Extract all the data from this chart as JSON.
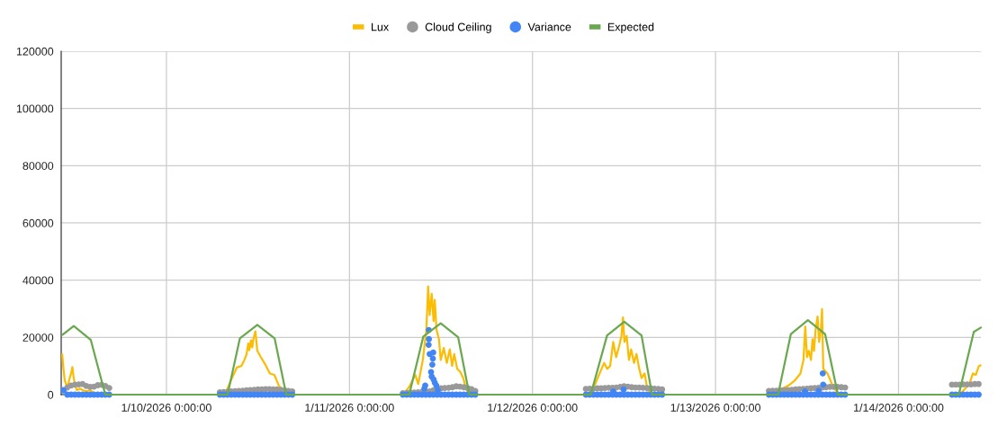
{
  "chart_data": {
    "type": "line",
    "legend": "top",
    "grid": true,
    "xlim": [
      "2026-01-09T10:12",
      "2026-01-14T10:48"
    ],
    "xticks": [
      {
        "value": "2026-01-10T00:00",
        "label": "1/10/2026 0:00:00"
      },
      {
        "value": "2026-01-11T00:00",
        "label": "1/11/2026 0:00:00"
      },
      {
        "value": "2026-01-12T00:00",
        "label": "1/12/2026 0:00:00"
      },
      {
        "value": "2026-01-13T00:00",
        "label": "1/13/2026 0:00:00"
      },
      {
        "value": "2026-01-14T00:00",
        "label": "1/14/2026 0:00:00"
      }
    ],
    "ylim": [
      0,
      120000
    ],
    "yticks": [
      0,
      20000,
      40000,
      60000,
      80000,
      100000,
      120000
    ],
    "series": [
      {
        "name": "Lux",
        "color": "#fbbc04",
        "x": [
          "2026-01-09T10:20",
          "2026-01-09T10:30",
          "2026-01-09T10:40",
          "2026-01-09T10:50",
          "2026-01-09T11:00",
          "2026-01-09T11:20",
          "2026-01-09T11:30",
          "2026-01-09T11:40",
          "2026-01-09T11:50",
          "2026-01-09T12:00",
          "2026-01-09T12:15",
          "2026-01-09T12:40",
          "2026-01-09T13:00",
          "2026-01-09T13:30",
          "2026-01-09T14:00",
          "2026-01-09T14:30",
          "2026-01-09T14:45",
          "2026-01-10T00:00",
          "2026-01-10T07:40",
          "2026-01-10T08:27",
          "2026-01-10T09:14",
          "2026-01-10T09:49",
          "2026-01-10T10:13",
          "2026-01-10T10:30",
          "2026-01-10T10:44",
          "2026-01-10T10:52",
          "2026-01-10T11:05",
          "2026-01-10T11:15",
          "2026-01-10T11:24",
          "2026-01-10T11:40",
          "2026-01-10T11:55",
          "2026-01-10T12:23",
          "2026-01-10T12:58",
          "2026-01-10T13:34",
          "2026-01-10T14:09",
          "2026-01-10T14:44",
          "2026-01-10T15:20",
          "2026-01-10T15:55",
          "2026-01-11T00:00",
          "2026-01-11T07:03",
          "2026-01-11T07:50",
          "2026-01-11T08:38",
          "2026-01-11T09:01",
          "2026-01-11T09:37",
          "2026-01-11T10:05",
          "2026-01-11T10:19",
          "2026-01-11T10:31",
          "2026-01-11T10:47",
          "2026-01-11T11:02",
          "2026-01-11T11:11",
          "2026-01-11T11:25",
          "2026-01-11T11:44",
          "2026-01-11T11:58",
          "2026-01-11T12:22",
          "2026-01-11T12:46",
          "2026-01-11T13:09",
          "2026-01-11T13:28",
          "2026-01-11T13:44",
          "2026-01-11T14:08",
          "2026-01-11T14:32",
          "2026-01-11T14:55",
          "2026-01-11T15:18",
          "2026-01-11T15:42",
          "2026-01-12T00:00",
          "2026-01-12T07:38",
          "2026-01-12T08:13",
          "2026-01-12T08:48",
          "2026-01-12T09:24",
          "2026-01-12T09:47",
          "2026-01-12T10:11",
          "2026-01-12T10:35",
          "2026-01-12T10:58",
          "2026-01-12T11:21",
          "2026-01-12T11:40",
          "2026-01-12T11:52",
          "2026-01-12T12:04",
          "2026-01-12T12:21",
          "2026-01-12T12:39",
          "2026-01-12T12:56",
          "2026-01-12T13:19",
          "2026-01-12T13:38",
          "2026-01-12T14:00",
          "2026-01-12T14:18",
          "2026-01-12T14:42",
          "2026-01-12T15:01",
          "2026-01-12T15:29",
          "2026-01-13T00:00",
          "2026-01-13T08:00",
          "2026-01-13T08:47",
          "2026-01-13T09:34",
          "2026-01-13T10:21",
          "2026-01-13T11:08",
          "2026-01-13T11:32",
          "2026-01-13T11:46",
          "2026-01-13T12:00",
          "2026-01-13T12:14",
          "2026-01-13T12:31",
          "2026-01-13T12:43",
          "2026-01-13T12:55",
          "2026-01-13T13:07",
          "2026-01-13T13:23",
          "2026-01-13T13:35",
          "2026-01-13T13:49",
          "2026-01-13T13:58",
          "2026-01-13T14:08",
          "2026-01-13T14:41",
          "2026-01-13T15:16",
          "2026-01-13T15:52",
          "2026-01-13T16:15",
          "2026-01-14T00:00",
          "2026-01-14T07:59",
          "2026-01-14T08:45",
          "2026-01-14T09:21",
          "2026-01-14T09:45",
          "2026-01-14T10:08",
          "2026-01-14T10:32",
          "2026-01-14T10:44"
        ],
        "values": [
          14000,
          9000,
          5000,
          3700,
          2500,
          6000,
          7400,
          9600,
          6000,
          3500,
          1600,
          2100,
          1600,
          1100,
          1600,
          500,
          0,
          null,
          0,
          4900,
          9500,
          10000,
          12100,
          14000,
          17900,
          15500,
          19000,
          16500,
          19400,
          22100,
          15300,
          13100,
          10500,
          7400,
          6900,
          3200,
          1100,
          0,
          null,
          0,
          2700,
          6900,
          3700,
          12100,
          22600,
          37800,
          27800,
          35200,
          25700,
          33100,
          22600,
          19400,
          12100,
          16300,
          11100,
          15800,
          10000,
          14200,
          9000,
          7900,
          5800,
          2100,
          0,
          null,
          0,
          3700,
          7400,
          11100,
          9000,
          10000,
          18400,
          13100,
          16800,
          20500,
          27000,
          18400,
          20500,
          12100,
          15800,
          11100,
          14200,
          9000,
          5800,
          7400,
          2700,
          0,
          null,
          0,
          2100,
          3200,
          4800,
          7400,
          12100,
          23800,
          13100,
          15300,
          12100,
          19400,
          15300,
          22600,
          27300,
          18400,
          22600,
          29900,
          9000,
          7400,
          3700,
          1100,
          0,
          null,
          0,
          2100,
          4200,
          7400,
          6900,
          10000,
          10200
        ]
      },
      {
        "name": "Cloud Ceiling",
        "type": "scatter",
        "marker": "circle",
        "color": "#999999",
        "x": [
          "2026-01-09T10:30",
          "2026-01-09T11:00",
          "2026-01-09T11:30",
          "2026-01-09T12:00",
          "2026-01-09T12:30",
          "2026-01-09T13:00",
          "2026-01-09T13:30",
          "2026-01-09T14:00",
          "2026-01-09T14:30",
          "2026-01-09T15:00",
          "2026-01-09T15:30",
          "2026-01-09T16:00",
          "2026-01-09T16:30",
          "2026-01-10T07:00",
          "2026-01-10T07:30",
          "2026-01-10T08:00",
          "2026-01-10T08:30",
          "2026-01-10T09:00",
          "2026-01-10T09:30",
          "2026-01-10T10:00",
          "2026-01-10T10:30",
          "2026-01-10T11:00",
          "2026-01-10T11:30",
          "2026-01-10T12:00",
          "2026-01-10T12:30",
          "2026-01-10T13:00",
          "2026-01-10T13:30",
          "2026-01-10T14:00",
          "2026-01-10T14:30",
          "2026-01-10T15:00",
          "2026-01-10T15:30",
          "2026-01-10T16:00",
          "2026-01-10T16:30",
          "2026-01-11T07:00",
          "2026-01-11T07:30",
          "2026-01-11T08:00",
          "2026-01-11T08:30",
          "2026-01-11T09:00",
          "2026-01-11T09:30",
          "2026-01-11T10:00",
          "2026-01-11T10:30",
          "2026-01-11T11:00",
          "2026-01-11T12:00",
          "2026-01-11T12:30",
          "2026-01-11T13:00",
          "2026-01-11T13:30",
          "2026-01-11T14:00",
          "2026-01-11T14:30",
          "2026-01-11T15:00",
          "2026-01-11T15:30",
          "2026-01-11T16:00",
          "2026-01-11T16:30",
          "2026-01-12T07:00",
          "2026-01-12T07:30",
          "2026-01-12T08:00",
          "2026-01-12T08:30",
          "2026-01-12T09:00",
          "2026-01-12T09:30",
          "2026-01-12T10:00",
          "2026-01-12T10:30",
          "2026-01-12T11:00",
          "2026-01-12T11:30",
          "2026-01-12T12:00",
          "2026-01-12T12:30",
          "2026-01-12T13:00",
          "2026-01-12T13:30",
          "2026-01-12T14:00",
          "2026-01-12T14:30",
          "2026-01-12T15:00",
          "2026-01-12T15:30",
          "2026-01-12T16:00",
          "2026-01-12T16:30",
          "2026-01-12T17:00",
          "2026-01-13T07:00",
          "2026-01-13T07:30",
          "2026-01-13T08:00",
          "2026-01-13T08:30",
          "2026-01-13T09:00",
          "2026-01-13T09:30",
          "2026-01-13T10:00",
          "2026-01-13T10:30",
          "2026-01-13T11:00",
          "2026-01-13T11:30",
          "2026-01-13T12:00",
          "2026-01-13T12:30",
          "2026-01-13T13:00",
          "2026-01-13T13:30",
          "2026-01-13T14:00",
          "2026-01-13T14:30",
          "2026-01-13T15:00",
          "2026-01-13T15:30",
          "2026-01-13T16:00",
          "2026-01-13T16:30",
          "2026-01-13T17:00",
          "2026-01-14T07:00",
          "2026-01-14T07:30",
          "2026-01-14T08:00",
          "2026-01-14T08:30",
          "2026-01-14T09:00",
          "2026-01-14T09:30",
          "2026-01-14T10:00",
          "2026-01-14T10:30"
        ],
        "values": [
          1600,
          2500,
          3200,
          3500,
          3600,
          3700,
          3000,
          2700,
          2800,
          3300,
          3400,
          3000,
          2300,
          800,
          900,
          1000,
          1100,
          1200,
          1300,
          1400,
          1500,
          1600,
          1700,
          1800,
          1800,
          1900,
          1900,
          1800,
          1800,
          1700,
          1500,
          1300,
          1100,
          500,
          600,
          700,
          700,
          800,
          900,
          1000,
          1100,
          1500,
          2200,
          2300,
          2400,
          2600,
          2900,
          2800,
          2600,
          2300,
          1900,
          1300,
          2000,
          2100,
          2100,
          2200,
          2200,
          2300,
          2400,
          2400,
          2500,
          2700,
          2900,
          2800,
          2600,
          2500,
          2500,
          2400,
          2300,
          2200,
          2100,
          2000,
          1800,
          1300,
          1400,
          1400,
          1500,
          1500,
          1600,
          1700,
          1800,
          1900,
          2000,
          2100,
          2200,
          2300,
          2400,
          2500,
          2600,
          2700,
          2700,
          2700,
          2600,
          2500,
          3500,
          3500,
          3500,
          3600,
          3600,
          3600,
          3700,
          3700
        ]
      },
      {
        "name": "Variance",
        "type": "scatter",
        "marker": "circle",
        "color": "#4285f4",
        "x": [
          "2026-01-09T10:30",
          "2026-01-09T11:00",
          "2026-01-09T11:30",
          "2026-01-09T12:00",
          "2026-01-09T12:30",
          "2026-01-09T13:00",
          "2026-01-09T13:30",
          "2026-01-09T14:00",
          "2026-01-09T14:30",
          "2026-01-09T15:00",
          "2026-01-09T15:30",
          "2026-01-09T16:00",
          "2026-01-09T16:30",
          "2026-01-10T07:00",
          "2026-01-10T07:30",
          "2026-01-10T08:00",
          "2026-01-10T08:30",
          "2026-01-10T09:00",
          "2026-01-10T09:30",
          "2026-01-10T10:00",
          "2026-01-10T10:30",
          "2026-01-10T11:00",
          "2026-01-10T11:30",
          "2026-01-10T12:00",
          "2026-01-10T12:30",
          "2026-01-10T13:00",
          "2026-01-10T13:30",
          "2026-01-10T14:00",
          "2026-01-10T14:30",
          "2026-01-10T15:00",
          "2026-01-10T15:30",
          "2026-01-10T16:00",
          "2026-01-10T16:30",
          "2026-01-11T07:00",
          "2026-01-11T07:30",
          "2026-01-11T08:00",
          "2026-01-11T08:30",
          "2026-01-11T09:00",
          "2026-01-11T09:30",
          "2026-01-11T09:49",
          "2026-01-11T09:56",
          "2026-01-11T10:00",
          "2026-01-11T10:23",
          "2026-01-11T10:24",
          "2026-01-11T10:25",
          "2026-01-11T10:30",
          "2026-01-11T10:31",
          "2026-01-11T10:42",
          "2026-01-11T10:47",
          "2026-01-11T10:52",
          "2026-01-11T10:56",
          "2026-01-11T10:59",
          "2026-01-11T11:00",
          "2026-01-11T11:02",
          "2026-01-11T11:11",
          "2026-01-11T11:23",
          "2026-01-11T11:30",
          "2026-01-11T11:35",
          "2026-01-11T12:00",
          "2026-01-11T12:30",
          "2026-01-11T13:00",
          "2026-01-11T13:30",
          "2026-01-11T14:00",
          "2026-01-11T14:30",
          "2026-01-11T15:00",
          "2026-01-11T15:30",
          "2026-01-11T16:00",
          "2026-01-11T16:30",
          "2026-01-12T07:00",
          "2026-01-12T07:30",
          "2026-01-12T08:00",
          "2026-01-12T08:30",
          "2026-01-12T09:00",
          "2026-01-12T09:30",
          "2026-01-12T10:00",
          "2026-01-12T10:30",
          "2026-01-12T10:35",
          "2026-01-12T11:00",
          "2026-01-12T11:30",
          "2026-01-12T11:57",
          "2026-01-12T12:00",
          "2026-01-12T12:30",
          "2026-01-12T13:00",
          "2026-01-12T13:30",
          "2026-01-12T14:00",
          "2026-01-12T14:30",
          "2026-01-12T15:00",
          "2026-01-12T15:30",
          "2026-01-12T16:00",
          "2026-01-12T16:30",
          "2026-01-12T17:00",
          "2026-01-13T07:00",
          "2026-01-13T07:30",
          "2026-01-13T08:00",
          "2026-01-13T08:30",
          "2026-01-13T09:00",
          "2026-01-13T09:30",
          "2026-01-13T10:00",
          "2026-01-13T10:30",
          "2026-01-13T11:00",
          "2026-01-13T11:30",
          "2026-01-13T11:44",
          "2026-01-13T12:00",
          "2026-01-13T12:30",
          "2026-01-13T13:00",
          "2026-01-13T13:30",
          "2026-01-13T13:31",
          "2026-01-13T14:00",
          "2026-01-13T14:04",
          "2026-01-13T14:07",
          "2026-01-13T14:30",
          "2026-01-13T15:00",
          "2026-01-13T15:30",
          "2026-01-13T16:00",
          "2026-01-13T16:30",
          "2026-01-13T17:00",
          "2026-01-14T07:00",
          "2026-01-14T07:30",
          "2026-01-14T08:00",
          "2026-01-14T08:30",
          "2026-01-14T09:00",
          "2026-01-14T09:30",
          "2026-01-14T10:00",
          "2026-01-14T10:30"
        ],
        "values": [
          1500,
          0,
          0,
          0,
          0,
          0,
          0,
          0,
          0,
          0,
          0,
          0,
          0,
          0,
          0,
          0,
          0,
          0,
          0,
          0,
          0,
          0,
          0,
          0,
          0,
          0,
          0,
          0,
          0,
          0,
          0,
          0,
          0,
          0,
          0,
          0,
          0,
          0,
          0,
          2100,
          3200,
          0,
          17400,
          22600,
          19400,
          0,
          14200,
          7900,
          6300,
          10500,
          12600,
          14700,
          0,
          5300,
          4200,
          3200,
          0,
          1600,
          0,
          0,
          0,
          0,
          0,
          0,
          0,
          0,
          0,
          0,
          0,
          0,
          0,
          0,
          0,
          0,
          0,
          0,
          1100,
          0,
          0,
          1800,
          0,
          0,
          0,
          0,
          0,
          0,
          0,
          0,
          0,
          0,
          0,
          0,
          0,
          0,
          0,
          0,
          0,
          0,
          0,
          0,
          0,
          1100,
          0,
          0,
          0,
          0,
          1400,
          0,
          7400,
          3500,
          0,
          0,
          0,
          0,
          0,
          0,
          0,
          0,
          0,
          0,
          0,
          0,
          0,
          0
        ]
      },
      {
        "name": "Expected",
        "color": "#6aa84f",
        "x": [
          "2026-01-09T10:25",
          "2026-01-09T11:51",
          "2026-01-09T14:05",
          "2026-01-09T15:59",
          "2026-01-10T08:01",
          "2026-01-10T09:38",
          "2026-01-10T11:55",
          "2026-01-10T14:11",
          "2026-01-10T15:43",
          "2026-01-11T07:50",
          "2026-01-11T09:41",
          "2026-01-11T11:58",
          "2026-01-11T14:15",
          "2026-01-11T15:43",
          "2026-01-12T07:38",
          "2026-01-12T09:47",
          "2026-01-12T12:02",
          "2026-01-12T14:18",
          "2026-01-12T15:41",
          "2026-01-13T08:12",
          "2026-01-13T09:53",
          "2026-01-13T12:07",
          "2026-01-13T14:22",
          "2026-01-13T16:03",
          "2026-01-14T07:54",
          "2026-01-14T09:52",
          "2026-01-14T10:47"
        ],
        "values": [
          21000,
          24000,
          19100,
          0,
          0,
          19700,
          24400,
          19700,
          0,
          0,
          20300,
          24900,
          20100,
          0,
          0,
          20700,
          25500,
          20700,
          0,
          0,
          21200,
          26000,
          21200,
          0,
          0,
          21900,
          23400
        ]
      }
    ]
  }
}
